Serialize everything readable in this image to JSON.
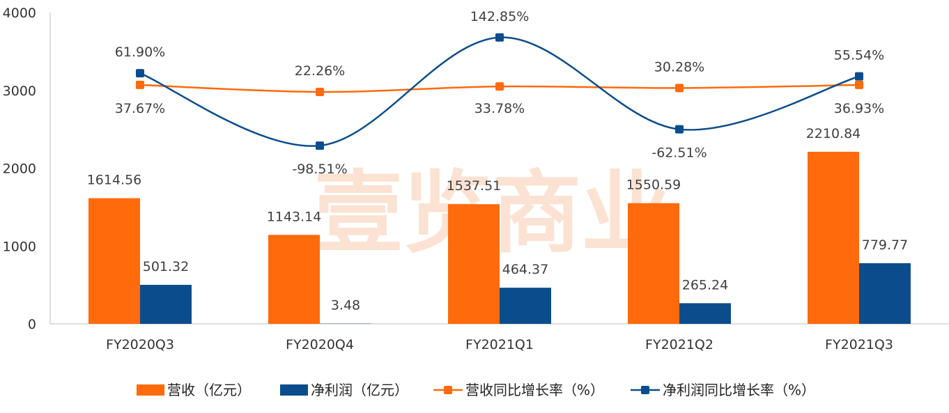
{
  "chart_data": {
    "type": "bar",
    "categories": [
      "FY2020Q3",
      "FY2020Q4",
      "FY2021Q1",
      "FY2021Q2",
      "FY2021Q3"
    ],
    "ylim": [
      0,
      4000
    ],
    "yticks": [
      0,
      1000,
      2000,
      3000,
      4000
    ],
    "grid": false,
    "legend_position": "bottom",
    "series": [
      {
        "name": "营收（亿元）",
        "kind": "bar",
        "color": "#ff6a0c",
        "values": [
          1614.56,
          1143.14,
          1537.51,
          1550.59,
          2210.84
        ],
        "labels": [
          "1614.56",
          "1143.14",
          "1537.51",
          "1550.59",
          "2210.84"
        ]
      },
      {
        "name": "净利润（亿元）",
        "kind": "bar",
        "color": "#0b4d8c",
        "values": [
          501.32,
          3.48,
          464.37,
          265.24,
          779.77
        ],
        "labels": [
          "501.32",
          "3.48",
          "464.37",
          "265.24",
          "779.77"
        ]
      },
      {
        "name": "营收同比增长率（%）",
        "kind": "line",
        "color": "#ff6a0c",
        "values": [
          37.67,
          22.26,
          33.78,
          30.28,
          36.93
        ],
        "labels": [
          "37.67%",
          "22.26%",
          "33.78%",
          "30.28%",
          "36.93%"
        ],
        "plotted_y": [
          3070,
          2980,
          3050,
          3030,
          3070
        ]
      },
      {
        "name": "净利润同比增长率（%）",
        "kind": "line",
        "color": "#0b4d8c",
        "values": [
          61.9,
          -98.51,
          142.85,
          -62.51,
          55.54
        ],
        "labels": [
          "61.90%",
          "-98.51%",
          "142.85%",
          "-62.51%",
          "55.54%"
        ],
        "plotted_y": [
          3220,
          2290,
          3680,
          2500,
          3180
        ]
      }
    ]
  },
  "watermark": "壹览商业",
  "colors": {
    "orange": "#ff6a0c",
    "blue": "#0b4d8c"
  }
}
